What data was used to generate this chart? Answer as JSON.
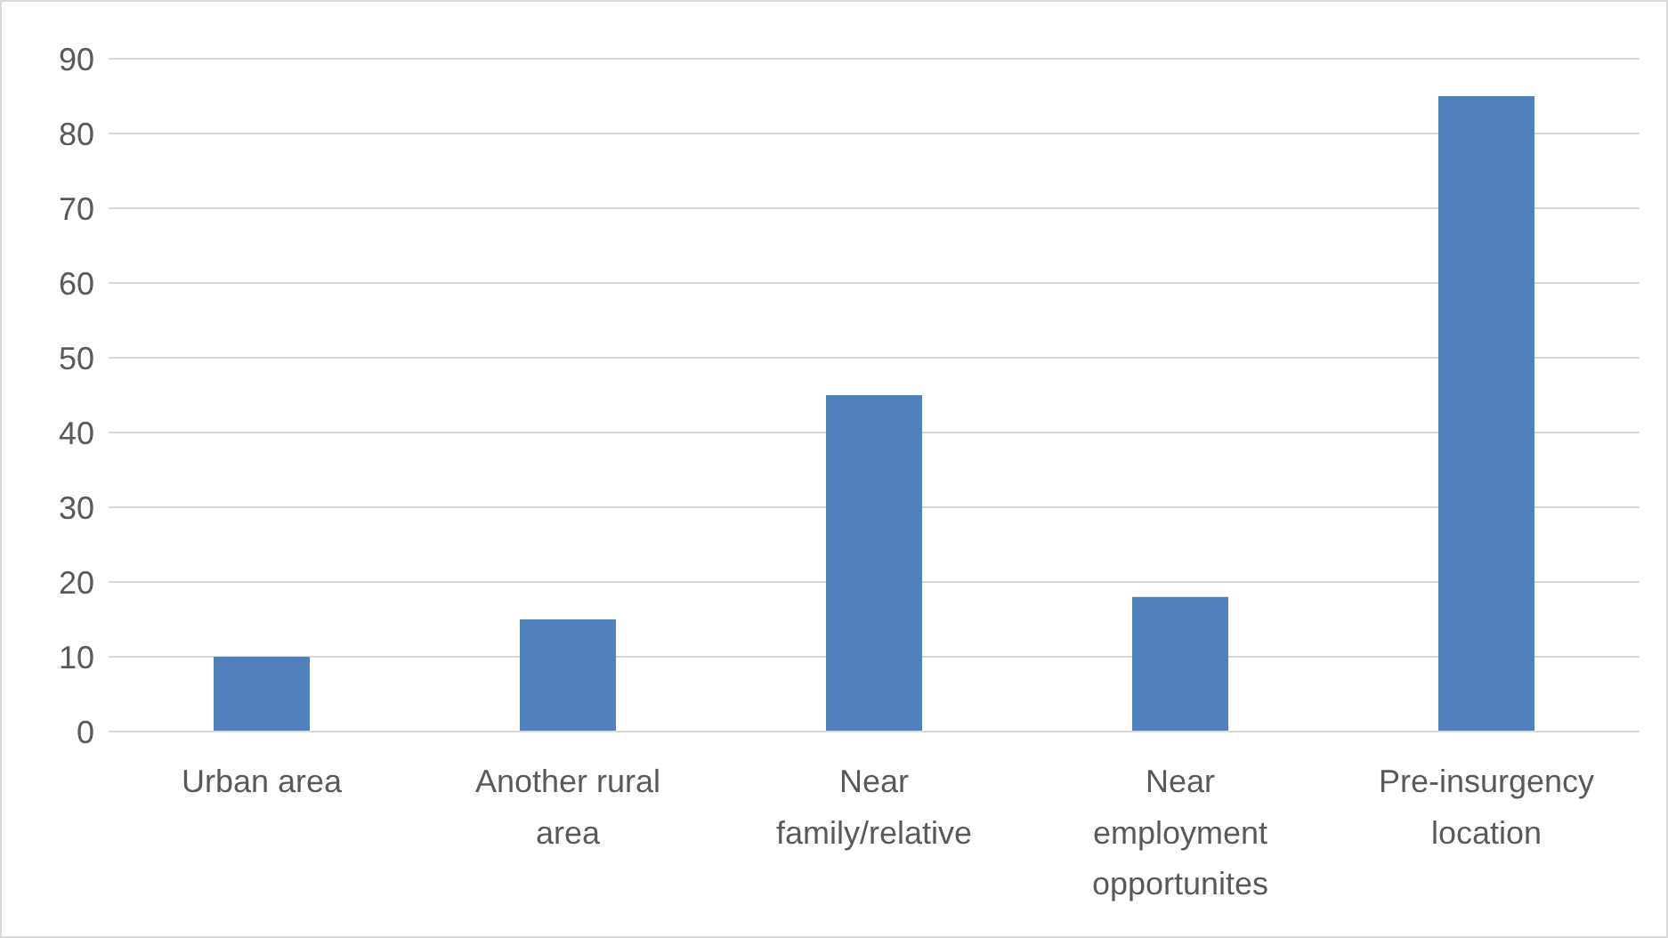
{
  "chart_data": {
    "type": "bar",
    "categories": [
      "Urban area",
      "Another rural area",
      "Near family/relative",
      "Near employment opportunites",
      "Pre-insurgency location"
    ],
    "values": [
      10,
      15,
      45,
      18,
      85
    ],
    "color": "#4f81bd",
    "ylim": [
      0,
      90
    ],
    "yticks": [
      0,
      10,
      20,
      30,
      40,
      50,
      60,
      70,
      80,
      90
    ],
    "grid": "y"
  }
}
